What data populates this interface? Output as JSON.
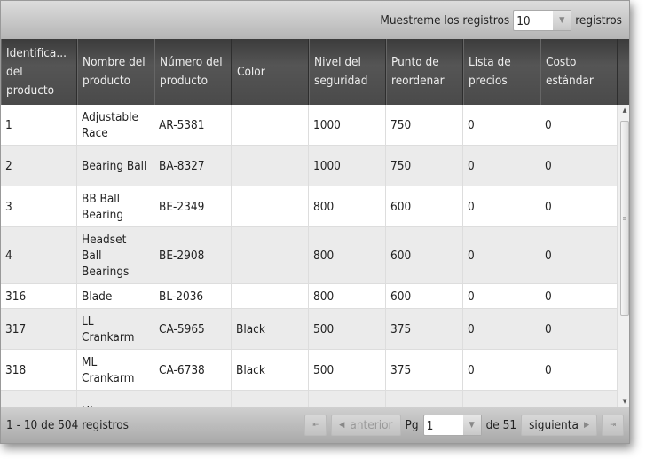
{
  "toolbar": {
    "show_label": "Muestreme los registros",
    "page_size": "10",
    "suffix": "registros"
  },
  "columns": [
    "Identifica... del producto",
    "Nombre del producto",
    "Número del producto",
    "Color",
    "Nivel del seguridad",
    "Punto de reordenar",
    "Lista de precios",
    "Costo estándar"
  ],
  "rows": [
    [
      "1",
      "Adjustable Race",
      "AR-5381",
      "",
      "1000",
      "750",
      "0",
      "0"
    ],
    [
      "2",
      "Bearing Ball",
      "BA-8327",
      "",
      "1000",
      "750",
      "0",
      "0"
    ],
    [
      "3",
      "BB Ball Bearing",
      "BE-2349",
      "",
      "800",
      "600",
      "0",
      "0"
    ],
    [
      "4",
      "Headset Ball Bearings",
      "BE-2908",
      "",
      "800",
      "600",
      "0",
      "0"
    ],
    [
      "316",
      "Blade",
      "BL-2036",
      "",
      "800",
      "600",
      "0",
      "0"
    ],
    [
      "317",
      "LL Crankarm",
      "CA-5965",
      "Black",
      "500",
      "375",
      "0",
      "0"
    ],
    [
      "318",
      "ML Crankarm",
      "CA-6738",
      "Black",
      "500",
      "375",
      "0",
      "0"
    ],
    [
      "",
      "HL",
      "",
      "",
      "",
      "",
      "",
      ""
    ]
  ],
  "footer": {
    "summary": "1 - 10 de 504 registros",
    "prev": "anterior",
    "page_label": "Pg",
    "page": "1",
    "of": "de 51",
    "next": "siguienta"
  }
}
